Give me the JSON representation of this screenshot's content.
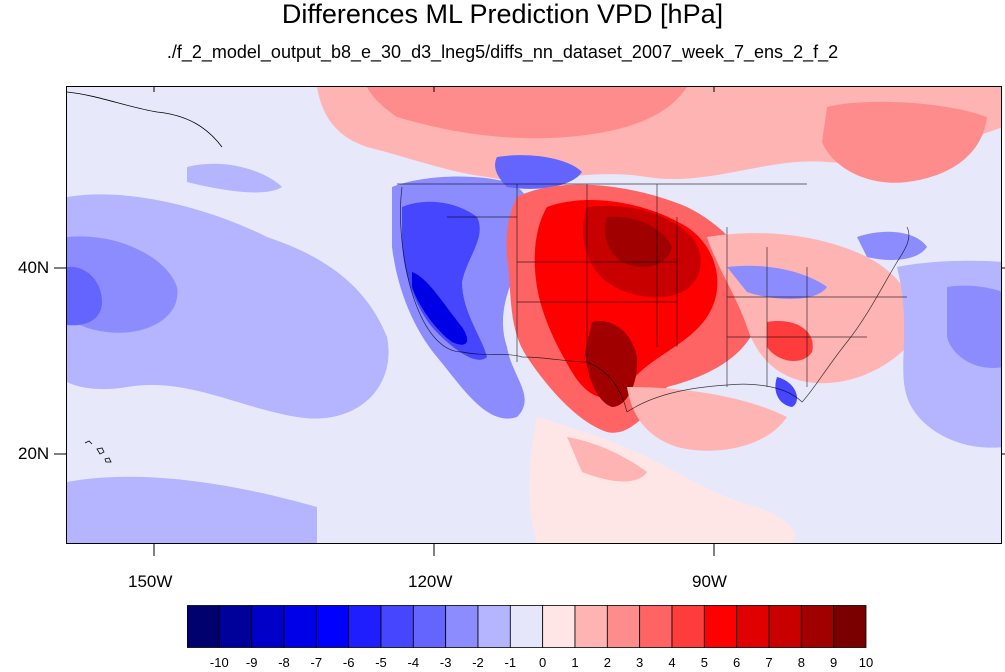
{
  "title": "Differences ML Prediction VPD [hPa]",
  "subtitle": "./f_2_model_output_b8_e_30_d3_lneg5/diffs_nn_dataset_2007_week_7_ens_2_f_2",
  "axes": {
    "lat_labels": [
      "40N",
      "20N"
    ],
    "lon_labels": [
      "150W",
      "120W",
      "90W"
    ]
  },
  "colorbar": {
    "labels": [
      "-10",
      "-9",
      "-8",
      "-7",
      "-6",
      "-5",
      "-4",
      "-3",
      "-2",
      "-1",
      "0",
      "1",
      "2",
      "3",
      "4",
      "5",
      "6",
      "7",
      "8",
      "9",
      "10"
    ],
    "colors": [
      "#00006e",
      "#00009a",
      "#0000c8",
      "#0000e6",
      "#0000ff",
      "#1e1eff",
      "#4646ff",
      "#6464ff",
      "#8c8cff",
      "#b4b4ff",
      "#e6e6fa",
      "#ffe6e6",
      "#ffb4b4",
      "#ff8c8c",
      "#ff6464",
      "#ff3c3c",
      "#ff0000",
      "#e00000",
      "#c80000",
      "#a00000",
      "#7a0000"
    ]
  },
  "colors": {
    "background_sea": "#e8e8fb",
    "positive_max": "#7a0000",
    "negative_max": "#00006e",
    "coastline": "#000000"
  }
}
